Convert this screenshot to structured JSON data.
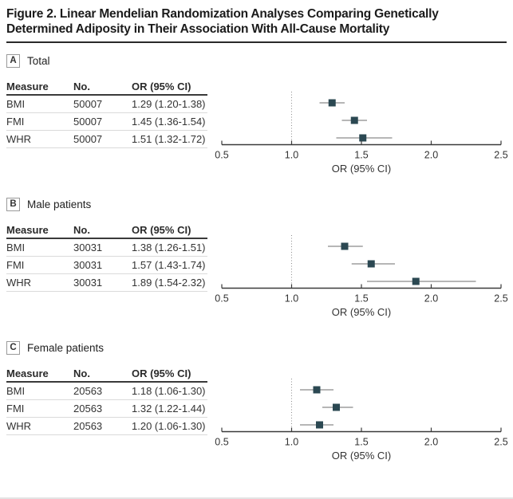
{
  "figure_title": "Figure 2. Linear Mendelian Randomization Analyses Comparing Genetically Determined Adiposity in Their Association With All-Cause Mortality",
  "table": {
    "headers": [
      "Measure",
      "No.",
      "OR (95% CI)"
    ]
  },
  "axis": {
    "label": "OR (95% CI)",
    "tick_labels": [
      "0.5",
      "1.0",
      "1.5",
      "2.0",
      "2.5"
    ],
    "min": 0.5,
    "max": 2.5,
    "reference": 1.0
  },
  "colors": {
    "marker": "#2b4852",
    "ci_line": "#9e9e9e",
    "axis_line": "#3a3a3a",
    "reference_line": "#8c8c8c"
  },
  "chart_data": [
    {
      "type": "scatter",
      "subtype": "forest-plot",
      "panel_letter": "A",
      "title": "Total",
      "xlabel": "OR (95% CI)",
      "xlim": [
        0.5,
        2.5
      ],
      "x_ticks": [
        0.5,
        1.0,
        1.5,
        2.0,
        2.5
      ],
      "reference_line": 1.0,
      "rows": [
        {
          "measure": "BMI",
          "no": "50007",
          "or_ci": "1.29 (1.20-1.38)",
          "or": 1.29,
          "ci_low": 1.2,
          "ci_high": 1.38
        },
        {
          "measure": "FMI",
          "no": "50007",
          "or_ci": "1.45 (1.36-1.54)",
          "or": 1.45,
          "ci_low": 1.36,
          "ci_high": 1.54
        },
        {
          "measure": "WHR",
          "no": "50007",
          "or_ci": "1.51 (1.32-1.72)",
          "or": 1.51,
          "ci_low": 1.32,
          "ci_high": 1.72
        }
      ]
    },
    {
      "type": "scatter",
      "subtype": "forest-plot",
      "panel_letter": "B",
      "title": "Male patients",
      "xlabel": "OR (95% CI)",
      "xlim": [
        0.5,
        2.5
      ],
      "x_ticks": [
        0.5,
        1.0,
        1.5,
        2.0,
        2.5
      ],
      "reference_line": 1.0,
      "rows": [
        {
          "measure": "BMI",
          "no": "30031",
          "or_ci": "1.38 (1.26-1.51)",
          "or": 1.38,
          "ci_low": 1.26,
          "ci_high": 1.51
        },
        {
          "measure": "FMI",
          "no": "30031",
          "or_ci": "1.57 (1.43-1.74)",
          "or": 1.57,
          "ci_low": 1.43,
          "ci_high": 1.74
        },
        {
          "measure": "WHR",
          "no": "30031",
          "or_ci": "1.89 (1.54-2.32)",
          "or": 1.89,
          "ci_low": 1.54,
          "ci_high": 2.32
        }
      ]
    },
    {
      "type": "scatter",
      "subtype": "forest-plot",
      "panel_letter": "C",
      "title": "Female patients",
      "xlabel": "OR (95% CI)",
      "xlim": [
        0.5,
        2.5
      ],
      "x_ticks": [
        0.5,
        1.0,
        1.5,
        2.0,
        2.5
      ],
      "reference_line": 1.0,
      "rows": [
        {
          "measure": "BMI",
          "no": "20563",
          "or_ci": "1.18 (1.06-1.30)",
          "or": 1.18,
          "ci_low": 1.06,
          "ci_high": 1.3
        },
        {
          "measure": "FMI",
          "no": "20563",
          "or_ci": "1.32 (1.22-1.44)",
          "or": 1.32,
          "ci_low": 1.22,
          "ci_high": 1.44
        },
        {
          "measure": "WHR",
          "no": "20563",
          "or_ci": "1.20 (1.06-1.30)",
          "or": 1.2,
          "ci_low": 1.06,
          "ci_high": 1.3
        }
      ]
    }
  ]
}
